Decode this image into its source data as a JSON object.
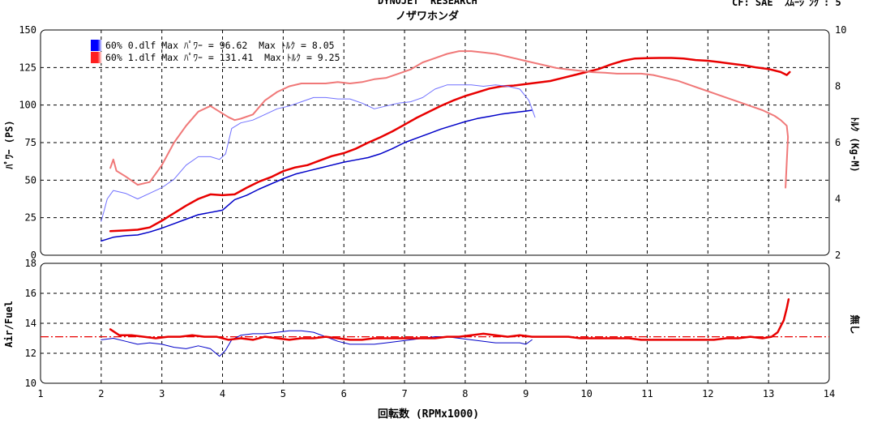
{
  "header": {
    "brand": "DYNOJET  RESEARCH",
    "subtitle": "ノザワホンダ",
    "corrections": "CF: SAE  ｽﾑｰｼﾞﾝｸﾞ: 5"
  },
  "legend": [
    {
      "swatch_color": "#0000ff",
      "text": "60% 0.dlf Max ﾊﾟﾜｰ = 96.62  Max ﾄﾙｸ = 8.05"
    },
    {
      "swatch_color": "#ff2020",
      "text": "60% 1.dlf Max ﾊﾟﾜｰ = 131.41  Max ﾄﾙｸ = 9.25"
    }
  ],
  "chart_data": [
    {
      "type": "line",
      "title": "",
      "xlabel": "回転数 (RPMx1000)",
      "ylabel": "ﾊﾟﾜｰ (PS)",
      "y2label": "ﾄﾙｸ (Kg-M)",
      "xlim": [
        1,
        14
      ],
      "ylim": [
        0,
        150
      ],
      "y2lim": [
        2,
        10
      ],
      "x_ticks": [
        "1",
        "2",
        "3",
        "4",
        "5",
        "6",
        "7",
        "8",
        "9",
        "10",
        "11",
        "12",
        "13",
        "14"
      ],
      "y_ticks": [
        "0",
        "25",
        "50",
        "75",
        "100",
        "125",
        "150"
      ],
      "y2_ticks": [
        "2",
        "4",
        "6",
        "8",
        "10"
      ],
      "grid": true,
      "legend_position": "top-left",
      "series": [
        {
          "name": "60% 0.dlf",
          "measure": "power",
          "axis": "left",
          "color": "#0000c8",
          "width": 1.5,
          "x": [
            2.0,
            2.2,
            2.4,
            2.6,
            2.8,
            3.0,
            3.2,
            3.4,
            3.6,
            3.8,
            4.0,
            4.2,
            4.4,
            4.6,
            4.8,
            5.0,
            5.2,
            5.4,
            5.6,
            5.8,
            6.0,
            6.2,
            6.4,
            6.6,
            6.8,
            7.0,
            7.2,
            7.4,
            7.6,
            7.8,
            8.0,
            8.2,
            8.4,
            8.6,
            8.8,
            9.0,
            9.1
          ],
          "y": [
            9.5,
            12,
            13,
            13.5,
            15.5,
            18,
            21,
            24,
            27,
            28.5,
            30,
            37,
            40,
            44,
            47.5,
            51,
            54,
            56,
            58,
            60,
            62,
            63.5,
            65,
            67.5,
            71,
            75,
            78,
            81,
            84,
            86.5,
            89,
            91,
            92.5,
            94,
            95,
            96,
            96.6
          ]
        },
        {
          "name": "60% 1.dlf",
          "measure": "power",
          "axis": "left",
          "color": "#e80000",
          "width": 2.5,
          "x": [
            2.15,
            2.4,
            2.6,
            2.8,
            3.0,
            3.2,
            3.4,
            3.6,
            3.8,
            4.0,
            4.2,
            4.4,
            4.6,
            4.8,
            5.0,
            5.2,
            5.4,
            5.6,
            5.8,
            6.0,
            6.2,
            6.4,
            6.6,
            6.8,
            7.0,
            7.2,
            7.4,
            7.6,
            7.8,
            8.0,
            8.2,
            8.4,
            8.6,
            8.8,
            9.0,
            9.2,
            9.4,
            9.6,
            9.8,
            10.0,
            10.2,
            10.4,
            10.6,
            10.8,
            11.0,
            11.2,
            11.4,
            11.6,
            11.8,
            12.0,
            12.2,
            12.4,
            12.6,
            12.8,
            13.0,
            13.2,
            13.3,
            13.35
          ],
          "y": [
            16,
            16.5,
            17,
            18.5,
            23,
            28,
            33,
            37.5,
            40.5,
            40,
            40.5,
            45,
            49,
            52,
            56,
            58.5,
            60,
            63,
            66,
            68,
            71,
            75,
            78.5,
            82.5,
            87,
            91.5,
            95.5,
            99.5,
            103,
            106,
            108.5,
            111,
            112.5,
            113,
            114,
            115,
            116,
            118,
            120,
            122,
            124,
            127,
            129.5,
            131,
            131.3,
            131.4,
            131.4,
            131,
            130,
            129.5,
            128.5,
            127.5,
            126.5,
            125,
            124,
            122,
            120,
            122
          ]
        },
        {
          "name": "60% 0.dlf",
          "measure": "torque",
          "axis": "right",
          "color": "#7070ff",
          "width": 1,
          "x": [
            2.0,
            2.05,
            2.1,
            2.2,
            2.4,
            2.6,
            2.8,
            3.0,
            3.2,
            3.4,
            3.6,
            3.8,
            3.95,
            4.05,
            4.15,
            4.3,
            4.5,
            4.7,
            4.9,
            5.1,
            5.3,
            5.5,
            5.7,
            5.9,
            6.1,
            6.3,
            6.5,
            6.7,
            6.9,
            7.1,
            7.3,
            7.5,
            7.7,
            7.9,
            8.1,
            8.3,
            8.5,
            8.7,
            8.9,
            9.05,
            9.15
          ],
          "y": [
            3.2,
            3.6,
            4.0,
            4.3,
            4.2,
            4.0,
            4.2,
            4.4,
            4.7,
            5.2,
            5.5,
            5.5,
            5.4,
            5.6,
            6.5,
            6.7,
            6.8,
            7.0,
            7.2,
            7.3,
            7.45,
            7.6,
            7.6,
            7.55,
            7.55,
            7.4,
            7.2,
            7.3,
            7.4,
            7.45,
            7.6,
            7.9,
            8.05,
            8.05,
            8.05,
            8.0,
            8.05,
            8.0,
            7.9,
            7.5,
            6.9
          ]
        },
        {
          "name": "60% 1.dlf",
          "measure": "torque",
          "axis": "right",
          "color": "#f07878",
          "width": 2,
          "x": [
            2.15,
            2.2,
            2.25,
            2.4,
            2.6,
            2.8,
            3.0,
            3.2,
            3.4,
            3.6,
            3.8,
            3.95,
            4.1,
            4.2,
            4.3,
            4.5,
            4.7,
            4.9,
            5.1,
            5.3,
            5.5,
            5.7,
            5.9,
            6.1,
            6.3,
            6.5,
            6.7,
            6.9,
            7.1,
            7.3,
            7.5,
            7.7,
            7.9,
            8.1,
            8.3,
            8.5,
            8.7,
            8.9,
            9.1,
            9.3,
            9.5,
            9.7,
            9.9,
            10.1,
            10.3,
            10.5,
            10.7,
            10.9,
            11.1,
            11.3,
            11.5,
            11.7,
            11.9,
            12.1,
            12.3,
            12.5,
            12.7,
            12.9,
            13.1,
            13.2,
            13.25,
            13.3,
            13.32,
            13.28
          ],
          "y": [
            5.1,
            5.4,
            5.0,
            4.8,
            4.5,
            4.6,
            5.2,
            6.0,
            6.6,
            7.1,
            7.3,
            7.1,
            6.9,
            6.8,
            6.85,
            7.0,
            7.5,
            7.8,
            8.0,
            8.1,
            8.1,
            8.1,
            8.15,
            8.1,
            8.15,
            8.25,
            8.3,
            8.45,
            8.6,
            8.85,
            9.0,
            9.15,
            9.25,
            9.25,
            9.2,
            9.15,
            9.05,
            8.95,
            8.85,
            8.75,
            8.65,
            8.6,
            8.55,
            8.5,
            8.48,
            8.45,
            8.45,
            8.45,
            8.4,
            8.3,
            8.2,
            8.05,
            7.9,
            7.75,
            7.6,
            7.45,
            7.3,
            7.15,
            6.95,
            6.8,
            6.7,
            6.6,
            6.2,
            4.4
          ]
        }
      ]
    },
    {
      "type": "line",
      "title": "",
      "xlabel": "回転数 (RPMx1000)",
      "ylabel": "Air/Fuel",
      "y2label": "無し",
      "xlim": [
        1,
        14
      ],
      "ylim": [
        10,
        18
      ],
      "y_ticks": [
        "10",
        "12",
        "14",
        "16",
        "18"
      ],
      "grid": true,
      "reference_line": {
        "y": 13.1,
        "color": "#e80000",
        "style": "dash-dot"
      },
      "series": [
        {
          "name": "60% 0.dlf",
          "color": "#0000c8",
          "width": 1,
          "x": [
            2.0,
            2.2,
            2.4,
            2.6,
            2.8,
            3.0,
            3.2,
            3.4,
            3.6,
            3.8,
            3.95,
            4.05,
            4.15,
            4.3,
            4.5,
            4.7,
            4.9,
            5.1,
            5.3,
            5.5,
            5.7,
            5.9,
            6.1,
            6.3,
            6.5,
            6.7,
            6.9,
            7.1,
            7.3,
            7.5,
            7.7,
            7.9,
            8.1,
            8.3,
            8.5,
            8.7,
            8.9,
            9.0,
            9.1
          ],
          "y": [
            12.9,
            13.0,
            12.8,
            12.6,
            12.7,
            12.6,
            12.4,
            12.3,
            12.5,
            12.3,
            11.8,
            12.2,
            12.9,
            13.2,
            13.3,
            13.3,
            13.4,
            13.5,
            13.5,
            13.4,
            13.1,
            12.8,
            12.6,
            12.6,
            12.6,
            12.7,
            12.8,
            12.9,
            13.0,
            13.1,
            13.1,
            13.0,
            12.9,
            12.8,
            12.7,
            12.7,
            12.7,
            12.6,
            12.9
          ]
        },
        {
          "name": "60% 1.dlf",
          "color": "#e80000",
          "width": 2.5,
          "x": [
            2.15,
            2.3,
            2.5,
            2.7,
            2.9,
            3.1,
            3.3,
            3.5,
            3.7,
            3.9,
            4.1,
            4.3,
            4.5,
            4.7,
            4.9,
            5.1,
            5.3,
            5.5,
            5.7,
            5.9,
            6.1,
            6.3,
            6.5,
            6.7,
            6.9,
            7.1,
            7.3,
            7.5,
            7.7,
            7.9,
            8.1,
            8.3,
            8.5,
            8.7,
            8.9,
            9.1,
            9.3,
            9.5,
            9.7,
            9.9,
            10.1,
            10.3,
            10.5,
            10.7,
            10.9,
            11.1,
            11.3,
            11.5,
            11.7,
            11.9,
            12.1,
            12.3,
            12.5,
            12.7,
            12.9,
            13.05,
            13.15,
            13.25,
            13.3,
            13.33
          ],
          "y": [
            13.6,
            13.2,
            13.2,
            13.1,
            13.0,
            13.1,
            13.1,
            13.2,
            13.1,
            13.1,
            12.9,
            13.0,
            12.9,
            13.1,
            13.0,
            12.9,
            13.0,
            13.0,
            13.1,
            13.0,
            12.9,
            12.9,
            13.0,
            13.0,
            13.0,
            13.0,
            13.0,
            13.0,
            13.1,
            13.1,
            13.2,
            13.3,
            13.2,
            13.1,
            13.2,
            13.1,
            13.1,
            13.1,
            13.1,
            13.0,
            13.0,
            13.0,
            13.0,
            13.0,
            12.9,
            12.9,
            12.9,
            12.9,
            12.9,
            12.9,
            12.9,
            13.0,
            13.0,
            13.1,
            13.0,
            13.1,
            13.4,
            14.2,
            15.0,
            15.6
          ]
        }
      ]
    }
  ]
}
